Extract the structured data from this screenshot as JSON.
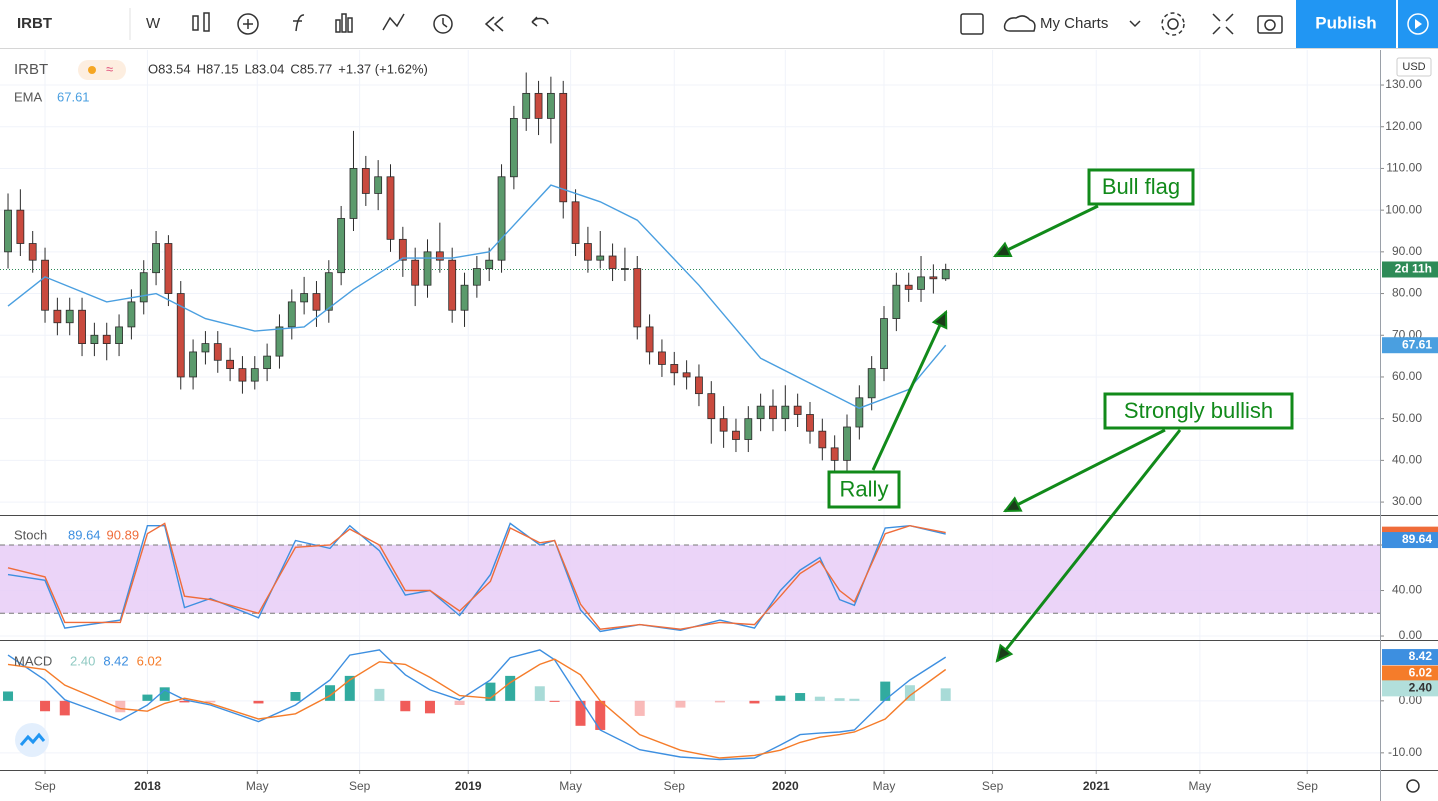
{
  "toolbar": {
    "symbol": "IRBT",
    "interval": "W",
    "my_charts": "My Charts",
    "publish": "Publish"
  },
  "chart_data": [
    {
      "type": "candlestick",
      "symbol": "IRBT",
      "currency": "USD",
      "countdown": "2d 11h",
      "ohlc_legend": [
        "O83.54",
        "H87.15",
        "L83.04",
        "C85.77",
        "+1.37 (+1.62%)"
      ],
      "up_color": "#5b9a6c",
      "down_color": "#c94a3e",
      "x": [
        0,
        1,
        2,
        3,
        4,
        5,
        6,
        7,
        8,
        9,
        10,
        11,
        12,
        13,
        14,
        15,
        16,
        17,
        18,
        19,
        20,
        21,
        22,
        23,
        24,
        25,
        26,
        27,
        28,
        29,
        30,
        31,
        32,
        33,
        34,
        35,
        36,
        37,
        38,
        39,
        40,
        41,
        42,
        43,
        44,
        45,
        46,
        47,
        48,
        49,
        50,
        51,
        52,
        53,
        54,
        55,
        56,
        57,
        58,
        59,
        60,
        61,
        62,
        63,
        64,
        65,
        66,
        67,
        68,
        69,
        70,
        71,
        72,
        73,
        74,
        75,
        76
      ],
      "open": [
        90,
        100,
        92,
        88,
        76,
        73,
        76,
        68,
        70,
        68,
        72,
        78,
        85,
        92,
        80,
        60,
        66,
        68,
        64,
        62,
        59,
        62,
        65,
        72,
        78,
        80,
        76,
        85,
        98,
        110,
        104,
        108,
        93,
        88,
        82,
        90,
        88,
        76,
        82,
        86,
        88,
        108,
        122,
        128,
        122,
        128,
        102,
        92,
        88,
        89,
        86,
        86,
        72,
        66,
        63,
        61,
        60,
        56,
        50,
        47,
        45,
        50,
        53,
        50,
        53,
        51,
        47,
        43,
        40,
        48,
        55,
        62,
        74,
        82,
        81,
        84,
        83.54
      ],
      "high": [
        104,
        105,
        95,
        91,
        79,
        79,
        79,
        73,
        73,
        75,
        81,
        88,
        95,
        94,
        83,
        69,
        71,
        71,
        67,
        65,
        65,
        68,
        75,
        81,
        84,
        83,
        88,
        101,
        119,
        113,
        112,
        111,
        96,
        91,
        93,
        97,
        91,
        85,
        89,
        91,
        111,
        125,
        133,
        131,
        132,
        131,
        105,
        96,
        95,
        92,
        91,
        89,
        75,
        69,
        66,
        64,
        63,
        59,
        53,
        50,
        53,
        56,
        57,
        58,
        56,
        54,
        50,
        46,
        51,
        58,
        65,
        77,
        85,
        85,
        89,
        87,
        87.15
      ],
      "low": [
        86,
        89,
        85,
        73,
        70,
        70,
        65,
        65,
        64,
        65,
        69,
        75,
        82,
        77,
        57,
        57,
        63,
        61,
        59,
        56,
        57,
        59,
        62,
        69,
        75,
        72,
        73,
        82,
        95,
        101,
        100,
        90,
        84,
        77,
        79,
        85,
        73,
        72,
        79,
        83,
        85,
        105,
        119,
        118,
        116,
        98,
        89,
        85,
        86,
        83,
        83,
        69,
        63,
        60,
        58,
        57,
        53,
        44,
        43,
        42,
        42,
        47,
        47,
        47,
        48,
        44,
        40,
        37,
        37,
        45,
        52,
        59,
        71,
        78,
        78,
        80,
        83.04
      ],
      "close": [
        100,
        92,
        88,
        76,
        73,
        76,
        68,
        70,
        68,
        72,
        78,
        85,
        92,
        80,
        60,
        66,
        68,
        64,
        62,
        59,
        62,
        65,
        72,
        78,
        80,
        76,
        85,
        98,
        110,
        104,
        108,
        93,
        88,
        82,
        90,
        88,
        76,
        82,
        86,
        88,
        108,
        122,
        128,
        122,
        128,
        102,
        92,
        88,
        89,
        86,
        86,
        72,
        66,
        63,
        61,
        60,
        56,
        50,
        47,
        45,
        50,
        53,
        50,
        53,
        51,
        47,
        43,
        40,
        48,
        55,
        62,
        74,
        82,
        81,
        84,
        83.54,
        85.77
      ],
      "overlay": {
        "name": "EMA",
        "value_label": "67.61",
        "color": "#4a9fe0",
        "x": [
          0,
          3,
          8,
          12,
          16,
          20,
          24,
          28,
          32,
          36,
          39,
          44,
          48,
          51,
          56,
          61,
          66,
          69,
          73,
          76
        ],
        "values": [
          77,
          84,
          78,
          80,
          74,
          71,
          72,
          81,
          88.5,
          88.5,
          90,
          106,
          102,
          97.6,
          82,
          64.5,
          57,
          52.5,
          57,
          67.61
        ]
      },
      "xlim": [
        -0.65,
        111.2
      ],
      "xticks": [
        {
          "value": 3,
          "label": "Sep"
        },
        {
          "value": 11.3,
          "label": "2018"
        },
        {
          "value": 20.2,
          "label": "May"
        },
        {
          "value": 28.5,
          "label": "Sep"
        },
        {
          "value": 37.3,
          "label": "2019"
        },
        {
          "value": 45.6,
          "label": "May"
        },
        {
          "value": 54,
          "label": "Sep"
        },
        {
          "value": 63,
          "label": "2020"
        },
        {
          "value": 71,
          "label": "May"
        },
        {
          "value": 79.8,
          "label": "Sep"
        },
        {
          "value": 88.2,
          "label": "2021"
        },
        {
          "value": 96.6,
          "label": "May"
        },
        {
          "value": 105.3,
          "label": "Sep"
        }
      ],
      "ylim": [
        26.9,
        138.4
      ],
      "yticks": [
        {
          "value": 30,
          "label": "30.00"
        },
        {
          "value": 40,
          "label": "40.00"
        },
        {
          "value": 50,
          "label": "50.00"
        },
        {
          "value": 60,
          "label": "60.00"
        },
        {
          "value": 70,
          "label": "70.00"
        },
        {
          "value": 80,
          "label": "80.00"
        },
        {
          "value": 90,
          "label": "90.00"
        },
        {
          "value": 100,
          "label": "100.00"
        },
        {
          "value": 110,
          "label": "110.00"
        },
        {
          "value": 120,
          "label": "120.00"
        },
        {
          "value": 130,
          "label": "130.00"
        }
      ],
      "grid": true,
      "annotations": [
        "Bull flag",
        "Strongly bullish",
        "Rally"
      ]
    },
    {
      "type": "line",
      "title": "Stoch",
      "ylim": [
        -3.5,
        106.4
      ],
      "band": [
        20,
        80
      ],
      "band_color": "#e7cdf7",
      "yticks": [
        {
          "value": 0,
          "label": "0.00"
        },
        {
          "value": 40,
          "label": "40.00"
        },
        {
          "value": 80,
          "label": "80.00"
        }
      ],
      "series": [
        {
          "color": "#3d8fe0",
          "value_label": "89.64",
          "x": [
            0,
            3,
            4.6,
            9.1,
            11.3,
            12.7,
            14.3,
            16.4,
            20.3,
            23.3,
            26.1,
            27.7,
            30.1,
            32.2,
            34.2,
            36.6,
            39.1,
            40.7,
            43.1,
            44.3,
            46.4,
            48,
            51.2,
            54.5,
            57.7,
            60.5,
            62.6,
            64.2,
            65.8,
            67.4,
            68.6,
            71.1,
            73.1,
            76
          ],
          "values": [
            54,
            49,
            7,
            14,
            97,
            97,
            25,
            33,
            16,
            84,
            77,
            97,
            75,
            36,
            40,
            18,
            54,
            99,
            80,
            84,
            23,
            4,
            10,
            5,
            14,
            7,
            40,
            58,
            69,
            32,
            27,
            95,
            97,
            89.64
          ]
        },
        {
          "color": "#ef6c3a",
          "value_label": "90.89",
          "x": [
            0,
            3,
            4.6,
            9.1,
            11.3,
            12.7,
            14.3,
            16.4,
            20.3,
            23.3,
            26.1,
            27.7,
            30.1,
            32.2,
            34.2,
            36.6,
            39.1,
            40.7,
            43.1,
            44.3,
            46.4,
            48,
            51.2,
            54.5,
            57.7,
            60.5,
            62.6,
            64.2,
            65.8,
            67.4,
            68.6,
            71.1,
            73.1,
            76
          ],
          "values": [
            60,
            52,
            12,
            12,
            90,
            99,
            35,
            32,
            20,
            78,
            80,
            94,
            80,
            40,
            40,
            22,
            48,
            95,
            82,
            84,
            28,
            6,
            10,
            6,
            12,
            10,
            35,
            55,
            66,
            40,
            30,
            90,
            97,
            90.89
          ]
        }
      ]
    },
    {
      "type": "macd",
      "title": "MACD",
      "ylim": [
        -13.3,
        11.7
      ],
      "yticks": [
        {
          "value": -10,
          "label": "-10.00"
        },
        {
          "value": 0,
          "label": "0.00"
        }
      ],
      "x": [
        0,
        3,
        4.6,
        9.1,
        11.3,
        12.7,
        14.3,
        16.4,
        20.3,
        23.3,
        26.1,
        27.7,
        30.1,
        32.2,
        34.2,
        36.6,
        39.1,
        40.7,
        43.1,
        44.3,
        46.4,
        48,
        51.2,
        54.5,
        57.7,
        60.5,
        62.6,
        64.2,
        65.8,
        67.4,
        68.6,
        71.1,
        73.1,
        76
      ],
      "histogram": {
        "value_label": "2.40",
        "up_color": "#26a69a",
        "down_color": "#ef5350",
        "values": [
          1.8,
          -2,
          -2.8,
          -2.2,
          1.2,
          2.6,
          -0.3,
          -0.3,
          -0.5,
          1.7,
          3,
          4.8,
          2.3,
          -2,
          -2.4,
          -0.8,
          3.5,
          4.8,
          2.8,
          -0.1,
          -4.8,
          -5.6,
          -2.9,
          -1.3,
          -0.3,
          -0.5,
          1,
          1.5,
          0.8,
          0.5,
          0.4,
          3.7,
          3,
          2.4
        ]
      },
      "series": [
        {
          "color": "#3d8fe0",
          "value_label": "8.42",
          "values": [
            8.8,
            4,
            0.2,
            -3.7,
            -0.8,
            2.1,
            0.2,
            -0.8,
            -4,
            -0.8,
            4,
            8.8,
            9.8,
            5,
            2.1,
            0.2,
            4,
            8.3,
            9.8,
            7.9,
            0.2,
            -5.6,
            -9.4,
            -10.8,
            -11.3,
            -11,
            -8.5,
            -6.5,
            -6.2,
            -6,
            -5.6,
            0.2,
            4,
            8.42
          ]
        },
        {
          "color": "#f57c2a",
          "value_label": "6.02",
          "values": [
            7,
            6,
            3,
            -1.5,
            -2,
            -0.5,
            0.5,
            -0.5,
            -3.5,
            -2.5,
            1,
            4,
            7.5,
            7,
            4.5,
            1,
            0.5,
            3.5,
            7,
            8,
            5,
            0,
            -6.5,
            -9.5,
            -11,
            -10.5,
            -9.5,
            -8,
            -7,
            -6.5,
            -6,
            -3.5,
            1,
            6.02
          ]
        }
      ]
    }
  ]
}
